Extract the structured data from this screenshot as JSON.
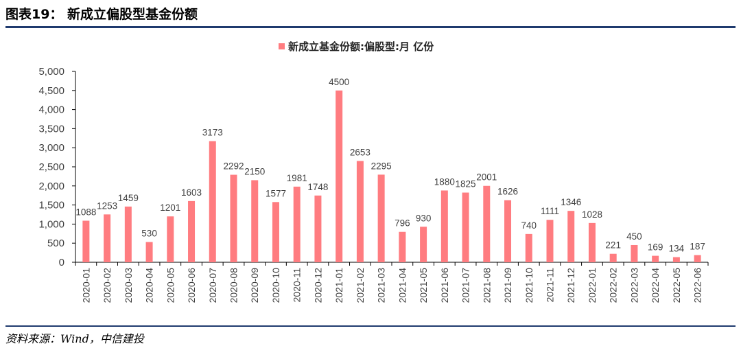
{
  "header": {
    "title": "图表19：  新成立偏股型基金份额"
  },
  "footer": {
    "source": "资料来源：Wind，中信建投"
  },
  "chart_data": {
    "type": "bar",
    "legend": {
      "label": "新成立基金份额:偏股型:月 亿份",
      "placement": "top-center"
    },
    "categories": [
      "2020-01",
      "2020-02",
      "2020-03",
      "2020-04",
      "2020-05",
      "2020-06",
      "2020-07",
      "2020-08",
      "2020-09",
      "2020-10",
      "2020-11",
      "2020-12",
      "2021-01",
      "2021-02",
      "2021-03",
      "2021-04",
      "2021-05",
      "2021-06",
      "2021-07",
      "2021-08",
      "2021-09",
      "2021-10",
      "2021-11",
      "2021-12",
      "2022-01",
      "2022-02",
      "2022-03",
      "2022-04",
      "2022-05",
      "2022-06"
    ],
    "series": [
      {
        "name": "新成立基金份额:偏股型:月 亿份",
        "color": "#ff7c80",
        "values": [
          1088,
          1253,
          1459,
          530,
          1201,
          1603,
          3173,
          2292,
          2150,
          1577,
          1981,
          1748,
          4500,
          2653,
          2295,
          796,
          930,
          1880,
          1825,
          2001,
          1626,
          740,
          1111,
          1346,
          1028,
          221,
          450,
          169,
          134,
          187
        ]
      }
    ],
    "yticks": [
      "0",
      "500",
      "1,000",
      "1,500",
      "2,000",
      "2,500",
      "3,000",
      "3,500",
      "4,000",
      "4,500",
      "5,000"
    ],
    "ylim": [
      0,
      5000
    ],
    "grid": false
  }
}
